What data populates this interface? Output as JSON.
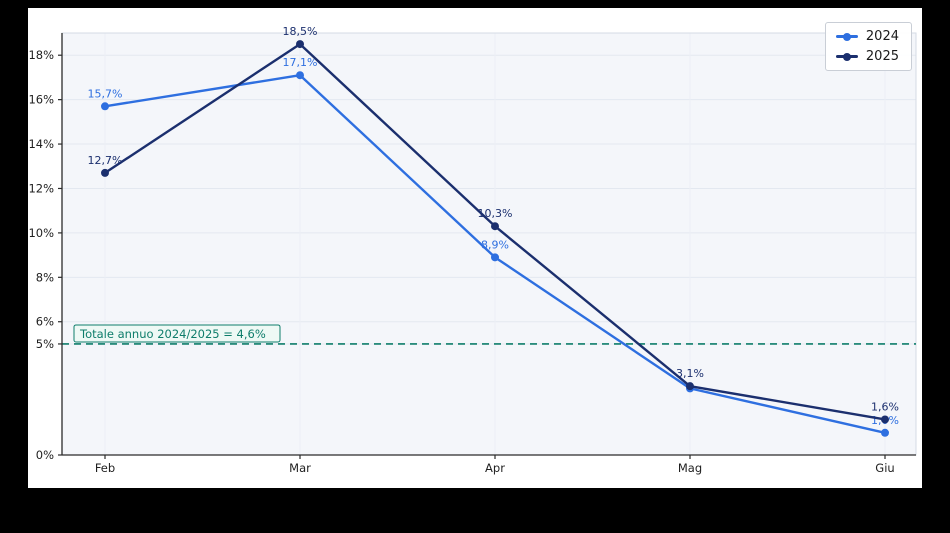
{
  "page": {
    "background": "#000000",
    "panel_background": "#ffffff",
    "plot_background": "#f4f6fa"
  },
  "chart_data": {
    "type": "line",
    "title": "",
    "xlabel": "",
    "ylabel": "",
    "categories": [
      "Feb",
      "Mar",
      "Apr",
      "Mag",
      "Giu"
    ],
    "series": [
      {
        "name": "2024",
        "color": "#2e6fe0",
        "values": [
          15.7,
          17.1,
          8.9,
          3.0,
          1.0
        ],
        "point_labels": [
          "15,7%",
          "17,1%",
          "8,9%",
          null,
          "1,0%"
        ]
      },
      {
        "name": "2025",
        "color": "#1b2f6e",
        "values": [
          12.7,
          18.5,
          10.3,
          3.1,
          1.6
        ],
        "point_labels": [
          "12,7%",
          "18,5%",
          "10,3%",
          "3,1%",
          "1,6%"
        ]
      }
    ],
    "y_ticks": [
      {
        "value": 18,
        "label": "18%"
      },
      {
        "value": 16,
        "label": "16%"
      },
      {
        "value": 14,
        "label": "14%"
      },
      {
        "value": 12,
        "label": "12%"
      },
      {
        "value": 10,
        "label": "10%"
      },
      {
        "value": 8,
        "label": "8%"
      },
      {
        "value": 6,
        "label": "6%"
      },
      {
        "value": 5,
        "label": "5%"
      },
      {
        "value": 0,
        "label": "0%"
      }
    ],
    "ylim": [
      0,
      19
    ],
    "grid": true,
    "legend_position": "top-right",
    "reference_line": {
      "value": 5,
      "style": "dashed",
      "color": "#0e7d6b",
      "annotation": "Totale annuo 2024/2025 = 4,6%"
    }
  },
  "colors": {
    "axis": "#2b2b2b",
    "tick_text": "#1f1f1f",
    "grid": "#e3e8f0",
    "plot_border": "#d5dbe4",
    "annotation_bg": "#eef9f5"
  }
}
